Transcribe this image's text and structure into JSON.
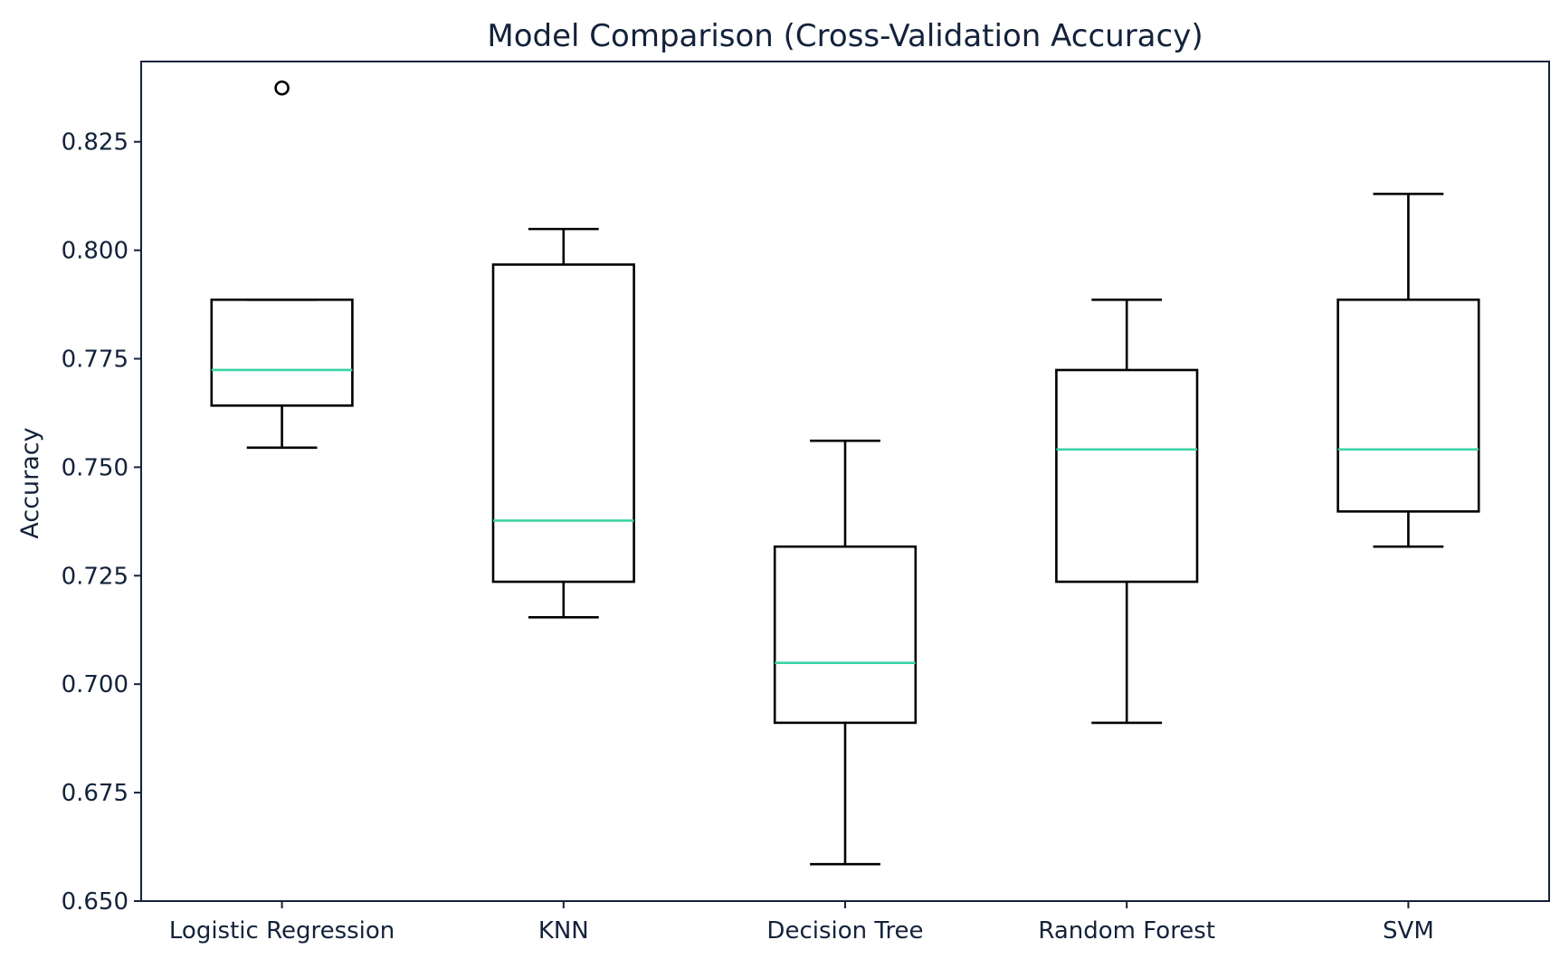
{
  "chart_data": {
    "type": "box",
    "title": "Model Comparison (Cross-Validation Accuracy)",
    "xlabel": "",
    "ylabel": "Accuracy",
    "ylim": [
      0.65,
      0.8435
    ],
    "yticks": [
      0.65,
      0.675,
      0.7,
      0.725,
      0.75,
      0.775,
      0.8,
      0.825
    ],
    "ytick_labels": [
      "0.650",
      "0.675",
      "0.700",
      "0.725",
      "0.750",
      "0.775",
      "0.800",
      "0.825"
    ],
    "grid": false,
    "legend": "none",
    "colors": {
      "box": "#000000",
      "median": "#3ad3a6",
      "axis": "#13223a"
    },
    "categories": [
      "Logistic Regression",
      "KNN",
      "Decision Tree",
      "Random Forest",
      "SVM"
    ],
    "boxes": [
      {
        "name": "Logistic Regression",
        "whislo": 0.7545,
        "q1": 0.7642,
        "med": 0.7724,
        "q3": 0.7886,
        "whishi": 0.7886,
        "fliers": [
          0.8374
        ]
      },
      {
        "name": "KNN",
        "whislo": 0.7154,
        "q1": 0.7236,
        "med": 0.7377,
        "q3": 0.7967,
        "whishi": 0.8049,
        "fliers": []
      },
      {
        "name": "Decision Tree",
        "whislo": 0.6585,
        "q1": 0.6911,
        "med": 0.7049,
        "q3": 0.7317,
        "whishi": 0.7561,
        "fliers": []
      },
      {
        "name": "Random Forest",
        "whislo": 0.6911,
        "q1": 0.7236,
        "med": 0.7541,
        "q3": 0.7724,
        "whishi": 0.7886,
        "fliers": []
      },
      {
        "name": "SVM",
        "whislo": 0.7317,
        "q1": 0.7398,
        "med": 0.7541,
        "q3": 0.7886,
        "whishi": 0.813,
        "fliers": []
      }
    ]
  }
}
